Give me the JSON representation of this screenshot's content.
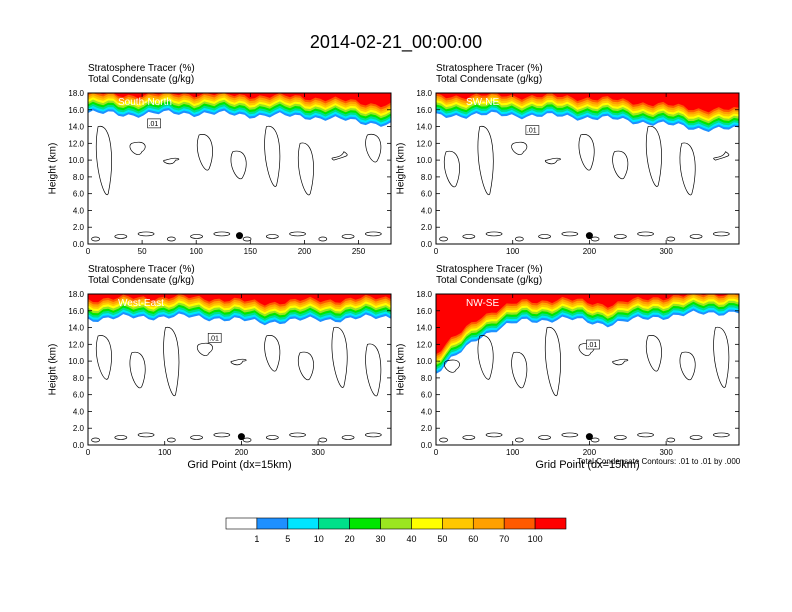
{
  "title": "2014-02-21_00:00:00",
  "variable_labels": [
    "Stratosphere Tracer   (%)",
    "Total Condensate   (g/kg)"
  ],
  "y_axis_label": "Height (km)",
  "x_axis_label": "Grid Point (dx=15km)",
  "contour_note": "Total Condensate Contours: .01 to .01 by .000",
  "colors": {
    "fill_levels": [
      "#ffffff",
      "#1e90ff",
      "#00e5ff",
      "#00e08a",
      "#00e600",
      "#9be620",
      "#ffff00",
      "#ffc800",
      "#ffa000",
      "#ff5a00",
      "#ff0000"
    ],
    "text_white": "#ffffff",
    "contour": "#000000"
  },
  "colorbar": {
    "labels": [
      "1",
      "5",
      "10",
      "20",
      "30",
      "40",
      "50",
      "60",
      "70",
      "100"
    ]
  },
  "chart_data": [
    {
      "type": "heatmap",
      "panel_label": "South-North",
      "ylim": [
        0,
        18
      ],
      "yticks": [
        "0.0",
        "2.0",
        "4.0",
        "6.0",
        "8.0",
        "10.0",
        "12.0",
        "14.0",
        "16.0",
        "18.0"
      ],
      "xlim": [
        0,
        280
      ],
      "xticks": [
        "0",
        "50",
        "100",
        "150",
        "200",
        "250"
      ],
      "xtick_values": [
        0,
        50,
        100,
        150,
        200,
        250
      ],
      "tracer_top_km": [
        18,
        18,
        18,
        18,
        18,
        18,
        18,
        18
      ],
      "tracer_base_km": [
        15.6,
        15.4,
        15.6,
        15.5,
        15.3,
        15.2,
        14.7,
        14.2
      ],
      "marker_x": 140,
      "marker_y": 1.0,
      "contour_label": ".01",
      "xlabel_visible": false
    },
    {
      "type": "heatmap",
      "panel_label": "SW-NE",
      "ylim": [
        0,
        18
      ],
      "yticks": [
        "0.0",
        "2.0",
        "4.0",
        "6.0",
        "8.0",
        "10.0",
        "12.0",
        "14.0",
        "16.0",
        "18.0"
      ],
      "xlim": [
        0,
        395
      ],
      "xticks": [
        "0",
        "100",
        "200",
        "300"
      ],
      "xtick_values": [
        0,
        100,
        200,
        300
      ],
      "tracer_top_km": [
        18,
        18,
        18,
        18,
        18,
        18,
        18,
        18
      ],
      "tracer_base_km": [
        15.2,
        15.4,
        15.3,
        15.2,
        14.9,
        14.4,
        13.8,
        13.6
      ],
      "marker_x": 200,
      "marker_y": 1.0,
      "contour_label": ".01",
      "xlabel_visible": false
    },
    {
      "type": "heatmap",
      "panel_label": "West-East",
      "ylim": [
        0,
        18
      ],
      "yticks": [
        "0.0",
        "2.0",
        "4.0",
        "6.0",
        "8.0",
        "10.0",
        "12.0",
        "14.0",
        "16.0",
        "18.0"
      ],
      "xlim": [
        0,
        395
      ],
      "xticks": [
        "0",
        "100",
        "200",
        "300"
      ],
      "xtick_values": [
        0,
        100,
        200,
        300
      ],
      "tracer_top_km": [
        18,
        18,
        18,
        18,
        18,
        18,
        18,
        18
      ],
      "tracer_base_km": [
        15.0,
        15.2,
        15.3,
        15.1,
        14.6,
        14.9,
        15.0,
        15.3
      ],
      "marker_x": 200,
      "marker_y": 1.0,
      "contour_label": ".01",
      "xlabel_visible": true
    },
    {
      "type": "heatmap",
      "panel_label": "NW-SE",
      "ylim": [
        0,
        18
      ],
      "yticks": [
        "0.0",
        "2.0",
        "4.0",
        "6.0",
        "8.0",
        "10.0",
        "12.0",
        "14.0",
        "16.0",
        "18.0"
      ],
      "xlim": [
        0,
        395
      ],
      "xticks": [
        "0",
        "100",
        "200",
        "300"
      ],
      "xtick_values": [
        0,
        100,
        200,
        300
      ],
      "tracer_top_km": [
        18,
        18,
        18,
        18,
        18,
        18,
        18,
        18
      ],
      "tracer_base_km": [
        8.5,
        13.0,
        14.8,
        15.0,
        14.4,
        15.2,
        15.6,
        15.9
      ],
      "marker_x": 200,
      "marker_y": 1.0,
      "contour_label": ".01",
      "xlabel_visible": true
    }
  ]
}
